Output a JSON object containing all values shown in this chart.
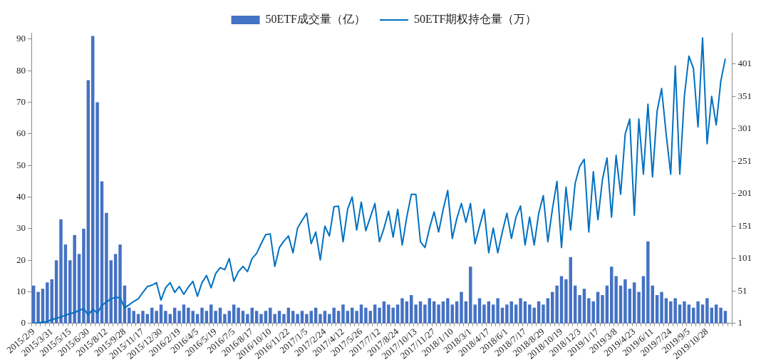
{
  "chart_data": {
    "type": "bar",
    "categories": [
      "2015/2/9",
      null,
      null,
      null,
      "2015/3/31",
      null,
      null,
      null,
      "2015/5/15",
      null,
      null,
      null,
      "2015/6/30",
      null,
      null,
      null,
      "2015/8/12",
      null,
      null,
      null,
      "2015/9/28",
      null,
      null,
      null,
      "2015/11/17",
      null,
      null,
      null,
      "2015/12/30",
      null,
      null,
      null,
      "2016/2/19",
      null,
      null,
      null,
      "2016/4/5",
      null,
      null,
      null,
      "2016/5/19",
      null,
      null,
      null,
      "2016/7/5",
      null,
      null,
      null,
      "2016/8/17",
      null,
      null,
      null,
      "2016/10/10",
      null,
      null,
      null,
      "2016/11/22",
      null,
      null,
      null,
      "2017/1/5",
      null,
      null,
      null,
      "2017/2/24",
      null,
      null,
      null,
      "2017/4/12",
      null,
      null,
      null,
      "2017/5/26",
      null,
      null,
      null,
      "2017/7/12",
      null,
      null,
      null,
      "2017/8/24",
      null,
      null,
      null,
      "2017/10/13",
      null,
      null,
      null,
      "2017/11/27",
      null,
      null,
      null,
      "2018/1/10",
      null,
      null,
      null,
      "2018/3/1",
      null,
      null,
      null,
      "2018/4/17",
      null,
      null,
      null,
      "2018/6/1",
      null,
      null,
      null,
      "2018/7/17",
      null,
      null,
      null,
      "2018/8/29",
      null,
      null,
      null,
      "2018/10/19",
      null,
      null,
      null,
      "2018/12/3",
      null,
      null,
      null,
      "2019/1/17",
      null,
      null,
      null,
      "2019/3/8",
      null,
      null,
      null,
      "2019/4/23",
      null,
      null,
      null,
      "2019/6/11",
      null,
      null,
      null,
      "2019/7/24",
      null,
      null,
      null,
      "2019/9/5",
      null,
      null,
      null,
      "2019/10/28",
      null,
      null,
      null,
      null,
      null
    ],
    "series": [
      {
        "name": "50ETF成交量（亿）",
        "color": "#4472c4",
        "values": [
          12,
          10,
          11,
          13,
          14,
          20,
          33,
          25,
          20,
          28,
          22,
          30,
          77,
          91,
          70,
          45,
          35,
          20,
          22,
          25,
          12,
          5,
          4,
          3,
          4,
          3,
          5,
          4,
          6,
          4,
          3,
          5,
          4,
          6,
          5,
          4,
          3,
          5,
          4,
          6,
          4,
          5,
          3,
          4,
          6,
          5,
          4,
          3,
          5,
          4,
          3,
          4,
          5,
          3,
          4,
          3,
          5,
          4,
          3,
          4,
          3,
          4,
          5,
          3,
          4,
          3,
          5,
          4,
          6,
          4,
          5,
          4,
          6,
          5,
          4,
          6,
          5,
          7,
          6,
          5,
          6,
          8,
          7,
          9,
          6,
          7,
          6,
          8,
          7,
          6,
          7,
          8,
          6,
          7,
          10,
          7,
          18,
          6,
          8,
          6,
          7,
          6,
          8,
          5,
          6,
          7,
          6,
          8,
          7,
          6,
          5,
          7,
          6,
          8,
          10,
          12,
          15,
          14,
          21,
          12,
          9,
          11,
          8,
          7,
          10,
          9,
          12,
          18,
          15,
          12,
          14,
          11,
          13,
          10,
          15,
          26,
          12,
          9,
          10,
          8,
          7,
          8,
          6,
          7,
          6,
          5,
          7,
          6,
          8,
          5,
          6,
          5,
          4,
          null
        ]
      },
      {
        "name": "50ETF期权持仓量（万）",
        "type": "line",
        "axis": "y2",
        "color": "#0070c0",
        "values": [
          1,
          2,
          3,
          4,
          7,
          9,
          11,
          14,
          16,
          18,
          21,
          24,
          14,
          23,
          17,
          29,
          34,
          39,
          41,
          41,
          25,
          30,
          35,
          39,
          49,
          58,
          60,
          64,
          37,
          56,
          64,
          49,
          58,
          46,
          57,
          66,
          43,
          64,
          75,
          56,
          78,
          87,
          84,
          101,
          66,
          81,
          89,
          81,
          101,
          109,
          124,
          138,
          139,
          89,
          118,
          128,
          136,
          110,
          148,
          160,
          171,
          124,
          142,
          99,
          151,
          136,
          181,
          182,
          127,
          177,
          196,
          145,
          188,
          144,
          165,
          186,
          127,
          148,
          174,
          134,
          177,
          122,
          165,
          200,
          200,
          127,
          118,
          148,
          173,
          142,
          177,
          206,
          132,
          163,
          186,
          157,
          186,
          124,
          151,
          177,
          110,
          148,
          110,
          142,
          171,
          132,
          165,
          182,
          122,
          165,
          122,
          171,
          198,
          127,
          177,
          220,
          118,
          211,
          145,
          217,
          243,
          254,
          142,
          235,
          161,
          223,
          256,
          165,
          260,
          200,
          293,
          316,
          168,
          316,
          231,
          339,
          227,
          328,
          363,
          293,
          231,
          398,
          231,
          351,
          413,
          394,
          304,
          441,
          278,
          351,
          307,
          374,
          409,
          null
        ]
      }
    ],
    "ylim": [
      0,
      92
    ],
    "yticks": [
      0,
      10,
      20,
      30,
      40,
      50,
      60,
      70,
      80,
      90
    ],
    "y2lim": [
      1,
      449
    ],
    "y2ticks": [
      1,
      51,
      101,
      151,
      201,
      251,
      301,
      351,
      401
    ],
    "legend": "top",
    "grid": false,
    "marker": "none",
    "line_style": "solid"
  }
}
